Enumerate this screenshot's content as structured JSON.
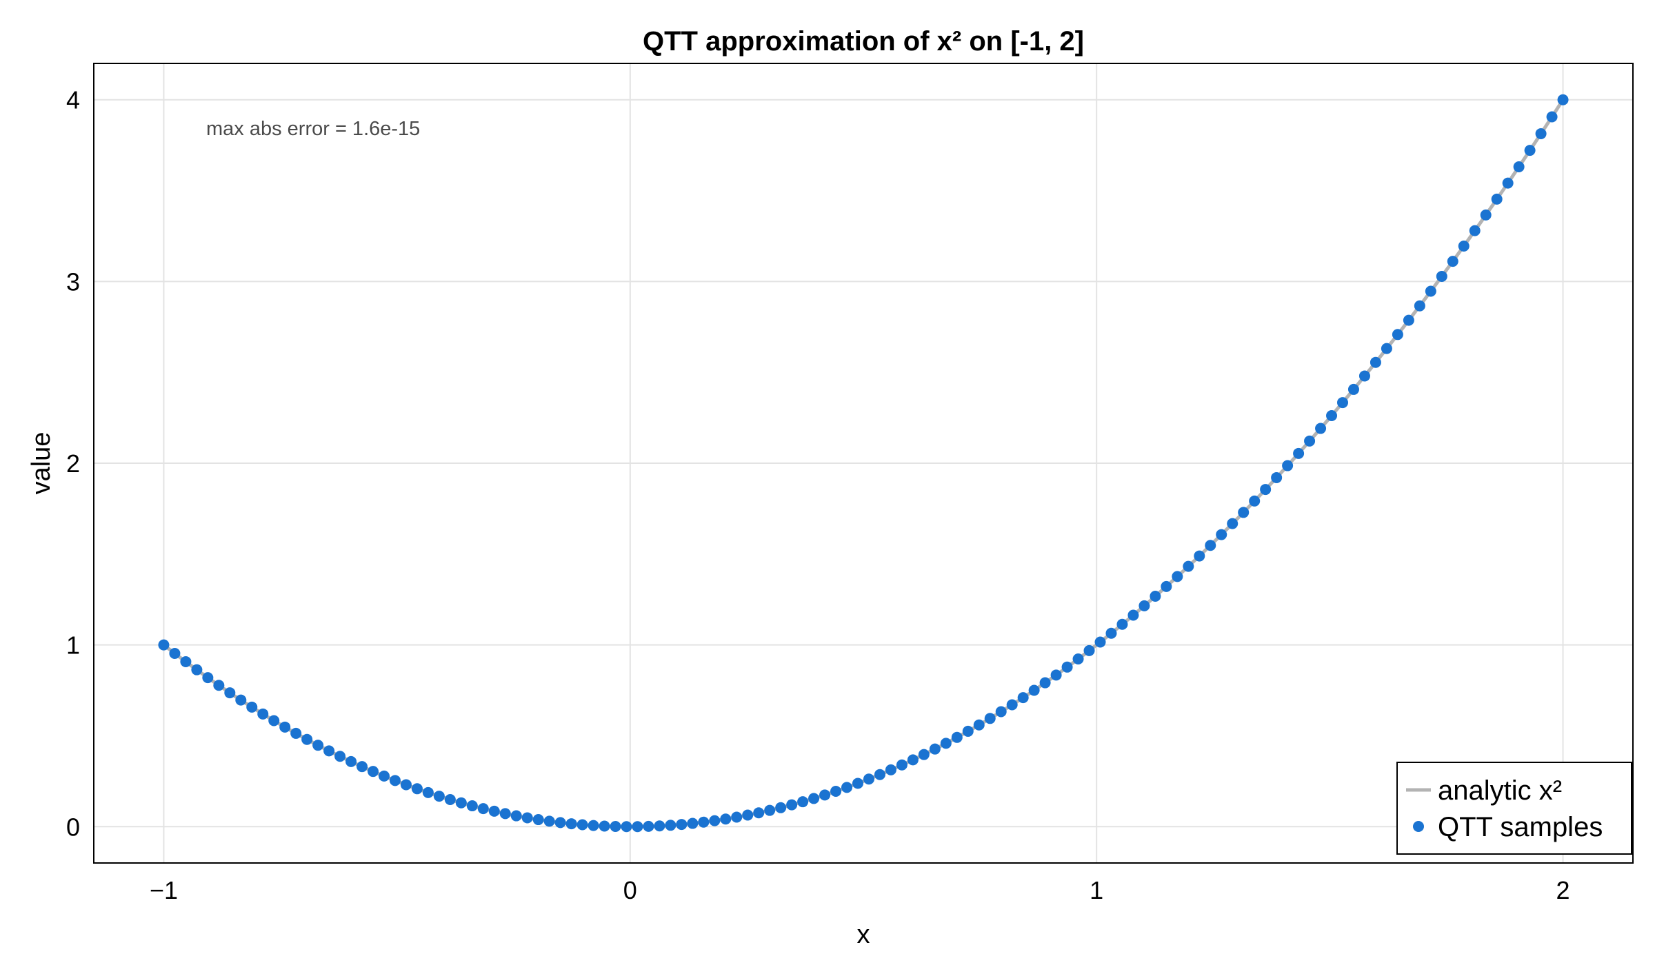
{
  "chart_data": {
    "type": "scatter",
    "title": "QTT approximation of x² on [-1, 2]",
    "xlabel": "x",
    "ylabel": "value",
    "xlim": [
      -1.15,
      2.15
    ],
    "ylim": [
      -0.2,
      4.2
    ],
    "x_ticks": [
      -1,
      0,
      1,
      2
    ],
    "y_ticks": [
      0,
      1,
      2,
      3,
      4
    ],
    "x_tick_labels": [
      "−1",
      "0",
      "1",
      "2"
    ],
    "y_tick_labels": [
      "0",
      "1",
      "2",
      "3",
      "4"
    ],
    "grid": true,
    "legend_position": "bottom-right",
    "annotation": "max abs error = 1.6e-15",
    "series": [
      {
        "name": "analytic x²",
        "style": "line",
        "color": "#b3b3b3",
        "function": "x^2",
        "x_range": [
          -1,
          2
        ]
      },
      {
        "name": "QTT samples",
        "style": "markers",
        "color": "#1a73d1",
        "x_start": -1,
        "x_end": 2,
        "count": 128,
        "y_formula": "x^2"
      }
    ]
  }
}
